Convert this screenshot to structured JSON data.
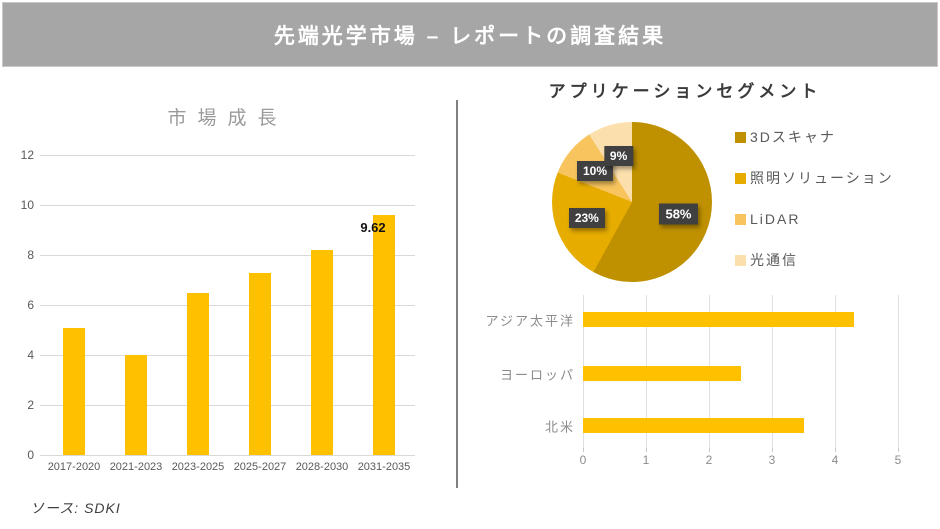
{
  "banner": {
    "title": "先端光学市場 – レポートの調査結果",
    "bg_color": "#a6a6a6",
    "text_color": "#ffffff"
  },
  "source": {
    "label": "ソース: SDKI"
  },
  "colors": {
    "bar_gold": "#ffc000",
    "grid": "#d9d9d9",
    "divider": "#808080",
    "label_box": "#404040"
  },
  "chart_data": [
    {
      "id": "market-growth",
      "type": "bar",
      "title": "市場成長",
      "categories": [
        "2017-2020",
        "2021-2023",
        "2023-2025",
        "2025-2027",
        "2028-2030",
        "2031-2035"
      ],
      "values": [
        5.1,
        4.0,
        6.5,
        7.3,
        8.2,
        9.62
      ],
      "bar_color": "#ffc000",
      "ylim": [
        0,
        12
      ],
      "yticks": [
        0,
        2,
        4,
        6,
        8,
        10,
        12
      ],
      "grid": true,
      "data_labels": [
        {
          "index": 5,
          "text": "9.62"
        }
      ]
    },
    {
      "id": "application-segments",
      "type": "pie",
      "title": "アプリケーションセグメント",
      "start_angle_deg": 0,
      "direction": "clockwise",
      "legend_position": "right",
      "slices": [
        {
          "label": "3Dスキャナ",
          "value": 58,
          "pct_label": "58%",
          "color": "#bf9000"
        },
        {
          "label": "照明ソリューション",
          "value": 23,
          "pct_label": "23%",
          "color": "#e6ac00"
        },
        {
          "label": "LiDAR",
          "value": 10,
          "pct_label": "10%",
          "color": "#f7c45e"
        },
        {
          "label": "光通信",
          "value": 9,
          "pct_label": "9%",
          "color": "#fbdfad"
        }
      ]
    },
    {
      "id": "regional-segments",
      "type": "bar",
      "orientation": "horizontal",
      "categories": [
        "アジア太平洋",
        "ヨーロッパ",
        "北米"
      ],
      "values": [
        4.3,
        2.5,
        3.5
      ],
      "bar_color": "#ffc000",
      "xlim": [
        0,
        5
      ],
      "xticks": [
        0,
        1,
        2,
        3,
        4,
        5
      ],
      "grid": true
    }
  ]
}
